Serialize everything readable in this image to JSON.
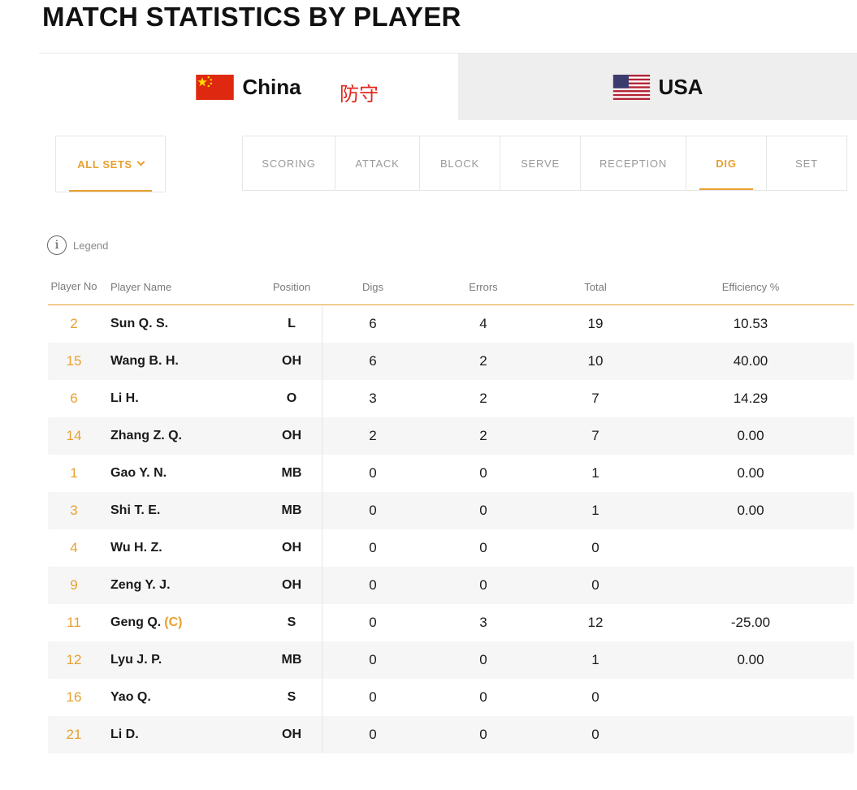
{
  "title": "MATCH STATISTICS BY PLAYER",
  "teams": [
    {
      "name": "China",
      "flag": "cn-flag",
      "active": true
    },
    {
      "name": "USA",
      "flag": "us-flag",
      "active": false
    }
  ],
  "annotation": "防守",
  "sets_filter": {
    "label": "ALL SETS"
  },
  "stat_tabs": [
    {
      "label": "SCORING",
      "active": false
    },
    {
      "label": "ATTACK",
      "active": false
    },
    {
      "label": "BLOCK",
      "active": false
    },
    {
      "label": "SERVE",
      "active": false
    },
    {
      "label": "RECEPTION",
      "active": false
    },
    {
      "label": "DIG",
      "active": true
    },
    {
      "label": "SET",
      "active": false
    }
  ],
  "legend": {
    "icon_glyph": "i",
    "label": "Legend"
  },
  "table": {
    "headers": {
      "player_no": "Player No",
      "player_name": "Player Name",
      "position": "Position",
      "digs": "Digs",
      "errors": "Errors",
      "total": "Total",
      "efficiency": "Efficiency %"
    },
    "rows": [
      {
        "no": "2",
        "name": "Sun Q. S.",
        "captain": "",
        "position": "L",
        "digs": "6",
        "errors": "4",
        "total": "19",
        "efficiency": "10.53"
      },
      {
        "no": "15",
        "name": "Wang B. H.",
        "captain": "",
        "position": "OH",
        "digs": "6",
        "errors": "2",
        "total": "10",
        "efficiency": "40.00"
      },
      {
        "no": "6",
        "name": "Li H.",
        "captain": "",
        "position": "O",
        "digs": "3",
        "errors": "2",
        "total": "7",
        "efficiency": "14.29"
      },
      {
        "no": "14",
        "name": "Zhang Z. Q.",
        "captain": "",
        "position": "OH",
        "digs": "2",
        "errors": "2",
        "total": "7",
        "efficiency": "0.00"
      },
      {
        "no": "1",
        "name": "Gao Y. N.",
        "captain": "",
        "position": "MB",
        "digs": "0",
        "errors": "0",
        "total": "1",
        "efficiency": "0.00"
      },
      {
        "no": "3",
        "name": "Shi T. E.",
        "captain": "",
        "position": "MB",
        "digs": "0",
        "errors": "0",
        "total": "1",
        "efficiency": "0.00"
      },
      {
        "no": "4",
        "name": "Wu H. Z.",
        "captain": "",
        "position": "OH",
        "digs": "0",
        "errors": "0",
        "total": "0",
        "efficiency": ""
      },
      {
        "no": "9",
        "name": "Zeng Y. J.",
        "captain": "",
        "position": "OH",
        "digs": "0",
        "errors": "0",
        "total": "0",
        "efficiency": ""
      },
      {
        "no": "11",
        "name": "Geng Q.",
        "captain": "(C)",
        "position": "S",
        "digs": "0",
        "errors": "3",
        "total": "12",
        "efficiency": "-25.00"
      },
      {
        "no": "12",
        "name": "Lyu J. P.",
        "captain": "",
        "position": "MB",
        "digs": "0",
        "errors": "0",
        "total": "1",
        "efficiency": "0.00"
      },
      {
        "no": "16",
        "name": "Yao Q.",
        "captain": "",
        "position": "S",
        "digs": "0",
        "errors": "0",
        "total": "0",
        "efficiency": ""
      },
      {
        "no": "21",
        "name": "Li D.",
        "captain": "",
        "position": "OH",
        "digs": "0",
        "errors": "0",
        "total": "0",
        "efficiency": ""
      }
    ]
  },
  "colors": {
    "accent": "#e8a02e",
    "annotation": "#e0281e",
    "inactive_tab_bg": "#eeeeee"
  }
}
